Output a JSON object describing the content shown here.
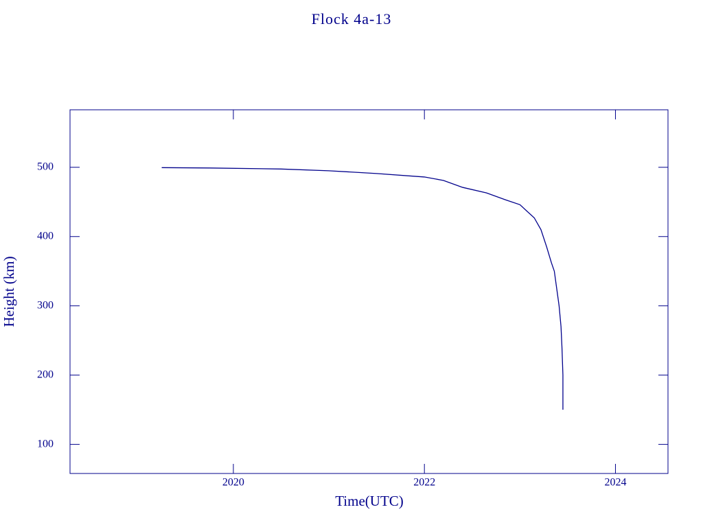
{
  "chart_data": {
    "type": "line",
    "title": "Flock 4a-13",
    "x_label": "Time(UTC)",
    "y_label": "Height (km)",
    "color": "#00008b",
    "xlim": [
      2018.29,
      2024.55
    ],
    "ylim": [
      58,
      583
    ],
    "xticks": [
      2020,
      2022,
      2024
    ],
    "yticks": [
      100,
      200,
      300,
      400,
      500
    ],
    "grid": false,
    "x": [
      2019.25,
      2019.75,
      2020.5,
      2021.0,
      2021.5,
      2022.0,
      2022.2,
      2022.4,
      2022.65,
      2022.85,
      2023.0,
      2023.15,
      2023.22,
      2023.28,
      2023.33,
      2023.36,
      2023.39,
      2023.41,
      2023.43,
      2023.44,
      2023.45,
      2023.45
    ],
    "values": [
      499.5,
      499,
      497.5,
      495,
      491,
      486,
      481,
      471,
      463,
      453,
      446,
      427,
      410,
      385,
      362,
      350,
      320,
      300,
      270,
      240,
      200,
      150
    ]
  }
}
